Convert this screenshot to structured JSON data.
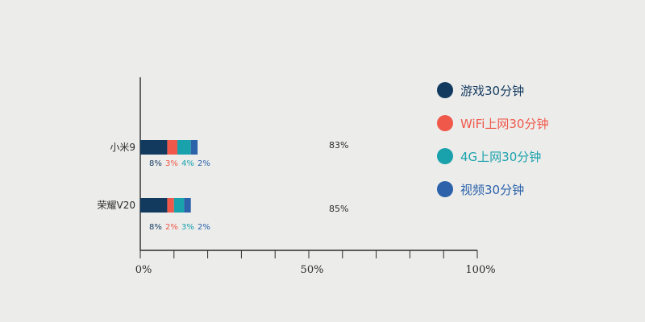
{
  "chart_data": {
    "type": "bar",
    "orientation": "horizontal",
    "stacked": true,
    "categories": [
      "小米9",
      "荣耀V20"
    ],
    "series": [
      {
        "name": "游戏30分钟",
        "color": "#123a5e",
        "values": [
          8,
          8
        ],
        "labels": [
          "8%",
          "8%"
        ]
      },
      {
        "name": "WiFi上网30分钟",
        "color": "#f0584a",
        "values": [
          3,
          2
        ],
        "labels": [
          "3%",
          "2%"
        ]
      },
      {
        "name": "4G上网30分钟",
        "color": "#19a2ab",
        "values": [
          4,
          3
        ],
        "labels": [
          "4%",
          "3%"
        ]
      },
      {
        "name": "视频30分钟",
        "color": "#2b62aa",
        "values": [
          2,
          2
        ],
        "labels": [
          "2%",
          "2%"
        ]
      }
    ],
    "remaining": [
      "83%",
      "85%"
    ],
    "xlim": [
      0,
      100
    ],
    "xticks": [
      "0%",
      "50%",
      "100%"
    ],
    "grid": false,
    "legend_position": "right"
  }
}
